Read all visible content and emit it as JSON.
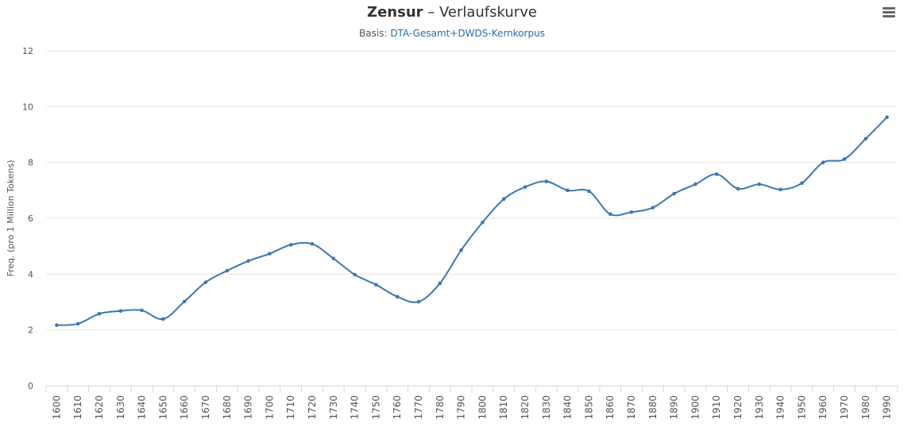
{
  "header": {
    "title_bold": "Zensur",
    "title_rest": " – Verlaufskurve",
    "subtitle_prefix": "Basis: ",
    "subtitle_link": "DTA-Gesamt+DWDS-Kernkorpus",
    "menu_icon": "hamburger-menu-icon"
  },
  "colors": {
    "series": "#3a78b0",
    "link": "#1f6fb2"
  },
  "chart_data": {
    "type": "line",
    "title": "Zensur – Verlaufskurve",
    "subtitle": "Basis: DTA-Gesamt+DWDS-Kernkorpus",
    "xlabel": "",
    "ylabel": "Freq. (pro 1 Million Tokens)",
    "ylim": [
      0,
      12
    ],
    "yticks": [
      0,
      2,
      4,
      6,
      8,
      10,
      12
    ],
    "grid": true,
    "x": [
      1600,
      1610,
      1620,
      1630,
      1640,
      1650,
      1660,
      1670,
      1680,
      1690,
      1700,
      1710,
      1720,
      1730,
      1740,
      1750,
      1760,
      1770,
      1780,
      1790,
      1800,
      1810,
      1820,
      1830,
      1840,
      1850,
      1860,
      1870,
      1880,
      1890,
      1900,
      1910,
      1920,
      1930,
      1940,
      1950,
      1960,
      1970,
      1980,
      1990
    ],
    "series": [
      {
        "values": [
          2.17,
          2.22,
          2.58,
          2.68,
          2.7,
          2.39,
          3.02,
          3.71,
          4.12,
          4.47,
          4.73,
          5.05,
          5.08,
          4.56,
          3.98,
          3.62,
          3.19,
          3.01,
          3.67,
          4.86,
          5.85,
          6.69,
          7.12,
          7.32,
          7.0,
          6.97,
          6.15,
          6.22,
          6.38,
          6.88,
          7.22,
          7.58,
          7.06,
          7.22,
          7.03,
          7.26,
          8.0,
          8.12,
          8.85,
          9.62
        ]
      }
    ]
  }
}
